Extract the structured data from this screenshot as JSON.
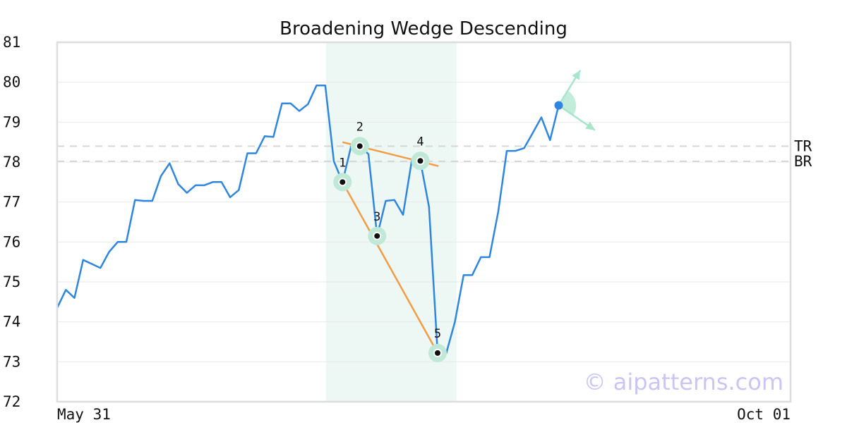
{
  "chart_data": {
    "type": "line",
    "title": "Broadening Wedge Descending",
    "xlabel": "",
    "ylabel": "",
    "x_tick_labels": [
      "May 31",
      "Oct 01"
    ],
    "ylim": [
      72,
      81
    ],
    "y_ticks": [
      72,
      73,
      74,
      75,
      76,
      77,
      78,
      79,
      80,
      81
    ],
    "grid": true,
    "series": [
      {
        "color": "#2e86de",
        "values": [
          74.35,
          74.8,
          74.6,
          75.55,
          75.45,
          75.35,
          75.75,
          76.0,
          76.0,
          77.05,
          77.03,
          77.03,
          77.65,
          77.97,
          77.45,
          77.23,
          77.42,
          77.42,
          77.5,
          77.5,
          77.12,
          77.3,
          78.22,
          78.22,
          78.65,
          78.63,
          79.47,
          79.47,
          79.28,
          79.45,
          79.92,
          79.92,
          78.02,
          77.5,
          78.4,
          78.4,
          78.2,
          76.15,
          77.03,
          77.05,
          76.68,
          78.03,
          78.03,
          76.88,
          73.22,
          73.22,
          74.0,
          75.17,
          75.17,
          75.62,
          75.62,
          76.75,
          78.28,
          78.28,
          78.35,
          78.73,
          79.12,
          78.55,
          79.42
        ]
      }
    ],
    "pattern_points": [
      {
        "label": "1",
        "index": 33,
        "value": 77.5
      },
      {
        "label": "2",
        "index": 35,
        "value": 78.4
      },
      {
        "label": "3",
        "index": 37,
        "value": 76.15
      },
      {
        "label": "4",
        "index": 42,
        "value": 78.03
      },
      {
        "label": "5",
        "index": 44,
        "value": 73.22
      }
    ],
    "trendlines": [
      {
        "start": {
          "index": 33,
          "value": 78.5
        },
        "end": {
          "index": 44.1,
          "value": 77.9
        }
      },
      {
        "start": {
          "index": 33,
          "value": 77.5
        },
        "end": {
          "index": 44,
          "value": 73.22
        }
      }
    ],
    "highlight_range": {
      "start_index": 31.1,
      "end_index": 46.2
    },
    "reference_lines": [
      {
        "label": "TR",
        "value": 78.4
      },
      {
        "label": "BR",
        "value": 78.02
      }
    ],
    "forecast": {
      "index": 58,
      "value": 79.42,
      "up_end": {
        "index": 60.5,
        "value": 80.3
      },
      "down_end": {
        "index": 62.2,
        "value": 78.8
      }
    },
    "watermark": "© aipatterns.com",
    "colors": {
      "line": "#2e86de",
      "trendline": "#f39c45",
      "marker_halo": "#bfe9d6",
      "highlight": "#edf7f3",
      "reference": "#d6d6d6",
      "grid": "#e9e9e9",
      "border": "#dddddd",
      "forecast": "#a8e6cb",
      "forecast_point": "#2e86de"
    }
  }
}
